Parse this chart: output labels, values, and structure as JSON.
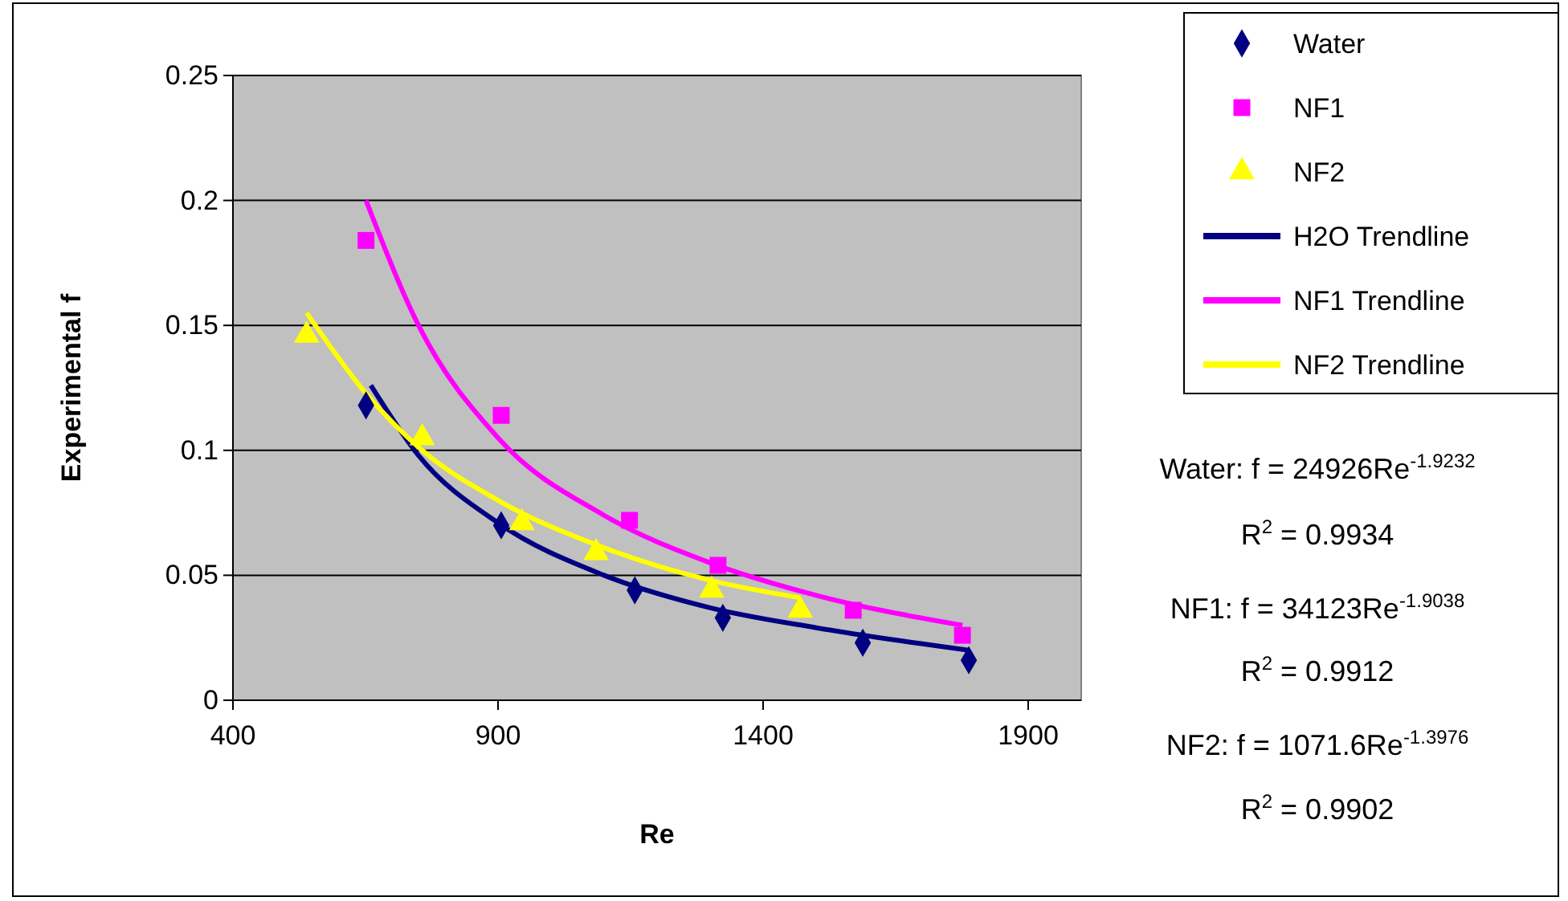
{
  "chart_data": {
    "type": "scatter",
    "xlabel": "Re",
    "ylabel": "Experimental f",
    "xlim": [
      400,
      2000
    ],
    "xticks": [
      400,
      900,
      1400,
      1900
    ],
    "ylim": [
      0,
      0.25
    ],
    "yticks": [
      0,
      0.05,
      0.1,
      0.15,
      0.2,
      0.25
    ],
    "grid": "y",
    "legend": "top right",
    "series": [
      {
        "name": "Water",
        "marker": "diamond",
        "color": "#000080",
        "x": [
          651,
          906,
          1158,
          1324,
          1588,
          1788
        ],
        "values": [
          0.118,
          0.07,
          0.044,
          0.033,
          0.023,
          0.016
        ]
      },
      {
        "name": "NF1",
        "marker": "square",
        "color": "#ff00ff",
        "x": [
          651,
          906,
          1148,
          1315,
          1570,
          1776
        ],
        "values": [
          0.184,
          0.114,
          0.072,
          0.054,
          0.036,
          0.026
        ]
      },
      {
        "name": "NF2",
        "marker": "triangle",
        "color": "#ffff00",
        "x": [
          539,
          757,
          945,
          1085,
          1303,
          1470
        ],
        "values": [
          0.146,
          0.105,
          0.071,
          0.059,
          0.044,
          0.036
        ]
      },
      {
        "name": "H2O Trendline",
        "type": "line",
        "color": "#000080",
        "x": [
          660,
          750,
          900,
          1100,
          1300,
          1500,
          1788
        ],
        "values": [
          0.126,
          0.098,
          0.071,
          0.05,
          0.037,
          0.029,
          0.02
        ]
      },
      {
        "name": "NF1 Trendline",
        "type": "line",
        "color": "#ff00ff",
        "x": [
          651,
          750,
          900,
          1100,
          1300,
          1500,
          1776
        ],
        "values": [
          0.2,
          0.15,
          0.105,
          0.074,
          0.055,
          0.042,
          0.03
        ]
      },
      {
        "name": "NF2 Trendline",
        "type": "line",
        "color": "#ffff00",
        "x": [
          539,
          650,
          757,
          900,
          1100,
          1300,
          1470
        ],
        "values": [
          0.155,
          0.123,
          0.1,
          0.08,
          0.061,
          0.048,
          0.041
        ]
      }
    ],
    "annotations": [
      "Water: f = 24926Re$^{-1.9232}$",
      "R$^{2}$ = 0.9934",
      "NF1: f = 34123Re$^{-1.9038}$",
      "R$^{2}$ = 0.9912",
      "NF2: f = 1071.6Re$^{-1.3976}$",
      "R$^{2}$ = 0.9902"
    ]
  }
}
